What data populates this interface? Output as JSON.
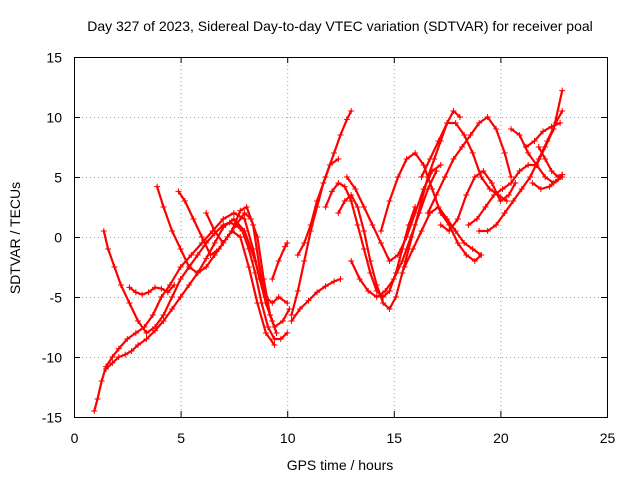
{
  "chart_data": {
    "type": "scatter",
    "title": "Day 327 of 2023, Sidereal Day-to-day VTEC variation (SDTVAR) for receiver poal",
    "xlabel": "GPS time / hours",
    "ylabel": "SDTVAR / TECUs",
    "xlim": [
      0,
      25
    ],
    "ylim": [
      -15,
      15
    ],
    "xticks": [
      0,
      5,
      10,
      15,
      20,
      25
    ],
    "yticks": [
      -15,
      -10,
      -5,
      0,
      5,
      10,
      15
    ],
    "xtick_labels": [
      "0",
      "5",
      "10",
      "15",
      "20",
      "25"
    ],
    "ytick_labels": [
      "-15",
      "-10",
      "-5",
      "0",
      "5",
      "10",
      "15"
    ],
    "grid": true,
    "marker": "plus",
    "color": "#ff0000",
    "series": [
      {
        "x": [
          0.95,
          1.1,
          1.3,
          1.5,
          1.8,
          2.1,
          2.5,
          2.9,
          3.3,
          3.7,
          4.1,
          4.5,
          5.0,
          5.5,
          6.0,
          6.5,
          7.0,
          7.5,
          8.0,
          8.4,
          8.7,
          9.0,
          9.3,
          9.6,
          10.0
        ],
        "y": [
          -14.5,
          -13.5,
          -12.0,
          -10.8,
          -10.0,
          -9.3,
          -8.5,
          -8.0,
          -7.5,
          -6.5,
          -5.0,
          -4.0,
          -2.5,
          -1.5,
          -0.5,
          0.5,
          1.5,
          2.0,
          1.5,
          -1.0,
          -3.5,
          -5.0,
          -5.5,
          -5.0,
          -5.5
        ]
      },
      {
        "x": [
          1.4,
          1.6,
          1.9,
          2.2,
          2.6,
          3.0,
          3.4,
          3.8,
          4.2,
          4.6,
          5.0,
          5.4,
          5.8,
          6.2,
          6.6,
          7.0,
          7.3,
          7.6,
          7.9,
          8.2,
          8.5,
          8.8,
          9.1,
          9.4,
          9.7,
          10.0
        ],
        "y": [
          0.5,
          -1.0,
          -2.5,
          -4.0,
          -5.5,
          -7.0,
          -8.0,
          -7.5,
          -6.5,
          -5.0,
          -3.5,
          -2.5,
          -1.5,
          -0.5,
          0.3,
          1.0,
          1.2,
          1.0,
          0.5,
          -1.0,
          -3.0,
          -5.5,
          -7.5,
          -8.5,
          -8.5,
          -8.0
        ]
      },
      {
        "x": [
          1.5,
          1.8,
          2.1,
          2.4,
          2.7,
          3.0,
          3.4,
          3.8,
          4.2,
          4.6,
          5.0,
          5.4,
          5.8,
          6.2,
          6.6,
          7.0,
          7.5,
          8.0,
          8.5,
          9.0,
          9.4,
          9.8,
          10.1
        ],
        "y": [
          -11.0,
          -10.5,
          -10.0,
          -9.8,
          -9.5,
          -9.0,
          -8.5,
          -7.8,
          -7.0,
          -6.0,
          -5.0,
          -4.0,
          -3.0,
          -1.8,
          -0.5,
          0.8,
          1.5,
          0.5,
          -2.0,
          -5.5,
          -7.5,
          -7.0,
          -6.0
        ]
      },
      {
        "x": [
          2.6,
          2.9,
          3.2,
          3.5,
          3.8,
          4.1,
          4.4,
          4.7
        ],
        "y": [
          -4.2,
          -4.6,
          -4.8,
          -4.6,
          -4.2,
          -4.3,
          -4.6,
          -4.0
        ]
      },
      {
        "x": [
          3.9,
          4.2,
          4.6,
          5.0,
          5.4,
          5.8,
          6.2,
          6.6,
          7.0,
          7.4,
          7.8,
          8.2,
          8.6,
          9.0,
          9.4
        ],
        "y": [
          4.2,
          2.5,
          0.5,
          -1.0,
          -2.5,
          -3.0,
          -2.5,
          -1.5,
          -0.5,
          0.5,
          0.0,
          -2.5,
          -5.5,
          -8.0,
          -9.0
        ]
      },
      {
        "x": [
          4.9,
          5.2,
          5.6,
          6.0,
          6.4,
          6.8,
          7.2,
          7.6,
          8.0,
          8.3,
          8.6,
          8.9,
          9.2,
          9.5
        ],
        "y": [
          3.8,
          3.0,
          1.5,
          0.0,
          -1.5,
          -1.0,
          0.0,
          1.0,
          2.0,
          1.5,
          0.0,
          -3.5,
          -6.5,
          -8.0
        ]
      },
      {
        "x": [
          6.2,
          6.6,
          7.0,
          7.4,
          7.8,
          8.1,
          8.4,
          8.7,
          9.0,
          9.3
        ],
        "y": [
          2.0,
          0.5,
          -0.5,
          0.5,
          2.2,
          2.5,
          1.0,
          -2.5,
          -5.5,
          -7.0
        ]
      },
      {
        "x": [
          9.3,
          9.6,
          9.9,
          10.0
        ],
        "y": [
          -3.5,
          -2.0,
          -0.8,
          -0.5
        ]
      },
      {
        "x": [
          10.2,
          10.5,
          10.8,
          11.1,
          11.4,
          11.7,
          12.0,
          12.4
        ],
        "y": [
          -6.5,
          -4.5,
          -2.0,
          0.5,
          2.5,
          4.5,
          6.0,
          6.5
        ]
      },
      {
        "x": [
          10.2,
          10.6,
          11.0,
          11.4,
          11.8,
          12.2,
          12.5
        ],
        "y": [
          -7.0,
          -6.0,
          -5.3,
          -4.6,
          -4.1,
          -3.7,
          -3.5
        ]
      },
      {
        "x": [
          10.5,
          10.8,
          11.1,
          11.4,
          11.8,
          12.2,
          12.5,
          12.8,
          13.0
        ],
        "y": [
          -1.5,
          -0.5,
          1.0,
          3.0,
          5.0,
          7.0,
          8.5,
          9.8,
          10.5
        ]
      },
      {
        "x": [
          11.8,
          12.1,
          12.4,
          12.7,
          13.0,
          13.3,
          13.6,
          13.9,
          14.2,
          14.5,
          14.8,
          15.1,
          15.4,
          15.7,
          16.0
        ],
        "y": [
          2.5,
          3.8,
          4.5,
          4.2,
          3.0,
          1.0,
          -1.0,
          -3.0,
          -4.5,
          -5.0,
          -4.5,
          -3.0,
          -1.0,
          1.0,
          2.5
        ]
      },
      {
        "x": [
          12.4,
          12.7,
          13.0,
          13.3,
          13.6,
          13.9,
          14.2,
          14.5,
          14.8,
          15.1,
          15.4,
          15.7,
          16.0,
          16.3,
          16.6,
          16.9,
          17.2,
          17.5,
          17.8,
          18.1
        ],
        "y": [
          2.0,
          3.0,
          3.5,
          2.5,
          0.5,
          -2.0,
          -4.0,
          -5.5,
          -6.0,
          -5.0,
          -3.0,
          -1.0,
          1.0,
          3.0,
          5.0,
          6.5,
          8.0,
          9.5,
          10.5,
          10.0
        ]
      },
      {
        "x": [
          12.8,
          13.2,
          13.6,
          14.0,
          14.4,
          14.8,
          15.2,
          15.6,
          16.0,
          16.4,
          16.8,
          17.2
        ],
        "y": [
          5.0,
          4.0,
          2.5,
          1.0,
          -0.5,
          -2.0,
          -1.5,
          0.0,
          2.0,
          4.0,
          5.5,
          6.0
        ]
      },
      {
        "x": [
          13.0,
          13.4,
          13.8,
          14.2,
          14.6,
          15.0,
          15.4,
          15.8,
          16.2,
          16.6,
          17.0
        ],
        "y": [
          -2.0,
          -3.5,
          -4.5,
          -5.0,
          -4.5,
          -3.5,
          -2.0,
          0.0,
          2.0,
          4.0,
          5.5
        ]
      },
      {
        "x": [
          14.4,
          14.8,
          15.2,
          15.6,
          16.0,
          16.4,
          16.8,
          17.2,
          17.6,
          18.0,
          18.4,
          18.8,
          19.1
        ],
        "y": [
          0.5,
          3.0,
          5.0,
          6.5,
          7.0,
          6.0,
          4.0,
          2.0,
          1.0,
          -0.5,
          -1.5,
          -2.0,
          -1.5
        ]
      },
      {
        "x": [
          15.5,
          15.9,
          16.3,
          16.7,
          17.1,
          17.5,
          17.9,
          18.3,
          18.7,
          19.1
        ],
        "y": [
          -2.5,
          -1.0,
          0.5,
          2.0,
          2.5,
          1.5,
          0.5,
          -0.5,
          -1.0,
          -1.5
        ]
      },
      {
        "x": [
          16.3,
          16.7,
          17.1,
          17.5,
          17.9,
          18.3,
          18.7,
          19.1,
          19.5,
          19.9,
          20.3
        ],
        "y": [
          5.0,
          6.5,
          8.0,
          9.5,
          9.5,
          8.5,
          7.0,
          5.0,
          4.0,
          3.5,
          3.0
        ]
      },
      {
        "x": [
          16.6,
          17.0,
          17.4,
          17.8,
          18.2,
          18.6,
          19.0,
          19.4,
          19.8,
          20.2,
          20.5
        ],
        "y": [
          2.0,
          3.5,
          5.0,
          6.5,
          7.5,
          8.5,
          9.5,
          10.0,
          9.0,
          7.0,
          5.0
        ]
      },
      {
        "x": [
          17.2,
          17.6,
          18.0,
          18.4,
          18.8,
          19.2,
          19.6,
          20.0,
          20.4,
          20.7
        ],
        "y": [
          1.0,
          0.5,
          1.5,
          3.5,
          5.0,
          5.5,
          4.5,
          3.0,
          3.5,
          4.5
        ]
      },
      {
        "x": [
          18.5,
          18.9,
          19.3,
          19.7,
          20.1,
          20.5,
          20.9,
          21.3,
          21.7,
          22.1,
          22.5,
          22.9
        ],
        "y": [
          1.0,
          1.5,
          2.5,
          3.5,
          4.0,
          4.5,
          5.5,
          6.0,
          6.0,
          5.0,
          4.5,
          5.0
        ]
      },
      {
        "x": [
          19.0,
          19.4,
          19.8,
          20.2,
          20.6,
          21.0,
          21.4,
          21.8,
          22.2,
          22.6,
          22.9
        ],
        "y": [
          0.5,
          0.5,
          1.0,
          2.0,
          3.0,
          4.0,
          5.0,
          6.5,
          8.0,
          9.5,
          10.5
        ]
      },
      {
        "x": [
          20.5,
          20.9,
          21.3,
          21.7,
          22.1,
          22.5,
          22.9
        ],
        "y": [
          9.0,
          8.5,
          7.0,
          6.0,
          7.5,
          9.0,
          12.2
        ]
      },
      {
        "x": [
          21.2,
          21.6,
          22.0,
          22.4,
          22.8
        ],
        "y": [
          7.5,
          8.0,
          8.8,
          9.2,
          9.5
        ]
      },
      {
        "x": [
          21.8,
          22.1,
          22.4,
          22.7,
          22.9
        ],
        "y": [
          7.5,
          6.5,
          5.5,
          5.0,
          5.2
        ]
      },
      {
        "x": [
          21.5,
          21.9,
          22.3,
          22.7,
          22.9
        ],
        "y": [
          4.5,
          4.0,
          4.2,
          4.8,
          5.2
        ]
      }
    ]
  }
}
